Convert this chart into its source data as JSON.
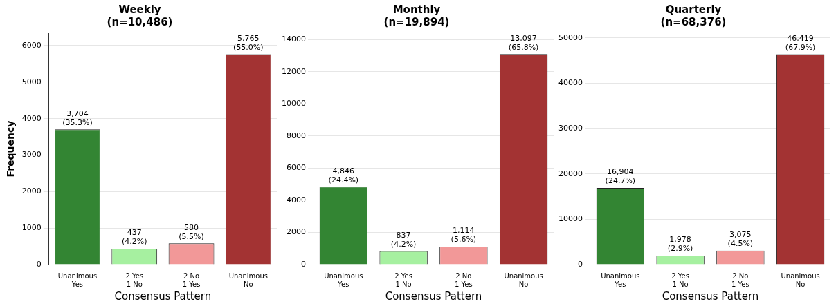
{
  "chart_data": [
    {
      "type": "bar",
      "title": "Weekly\n(n=10,486)",
      "xlabel": "Consensus Pattern",
      "ylabel": "Frequency",
      "categories": [
        "Unanimous\nYes",
        "2 Yes\n1 No",
        "2 No\n1 Yes",
        "Unanimous\nNo"
      ],
      "values": [
        3704,
        437,
        580,
        5765
      ],
      "colors": [
        "#338533",
        "#a6f0a0",
        "#f29898",
        "#a33333"
      ],
      "value_labels": [
        "3,704\n(35.3%)",
        "437\n(4.2%)",
        "580\n(5.5%)",
        "5,765\n(55.0%)"
      ],
      "ylim": [
        0,
        6340
      ],
      "yticks": [
        0,
        1000,
        2000,
        3000,
        4000,
        5000,
        6000
      ],
      "grid": "y"
    },
    {
      "type": "bar",
      "title": "Monthly\n(n=19,894)",
      "xlabel": "Consensus Pattern",
      "categories": [
        "Unanimous\nYes",
        "2 Yes\n1 No",
        "2 No\n1 Yes",
        "Unanimous\nNo"
      ],
      "values": [
        4846,
        837,
        1114,
        13097
      ],
      "colors": [
        "#338533",
        "#a6f0a0",
        "#f29898",
        "#a33333"
      ],
      "value_labels": [
        "4,846\n(24.4%)",
        "837\n(4.2%)",
        "1,114\n(5.6%)",
        "13,097\n(65.8%)"
      ],
      "ylim": [
        0,
        14400
      ],
      "yticks": [
        0,
        2000,
        4000,
        6000,
        8000,
        10000,
        12000,
        14000
      ],
      "grid": "y"
    },
    {
      "type": "bar",
      "title": "Quarterly\n(n=68,376)",
      "xlabel": "Consensus Pattern",
      "categories": [
        "Unanimous\nYes",
        "2 Yes\n1 No",
        "2 No\n1 Yes",
        "Unanimous\nNo"
      ],
      "values": [
        16904,
        1978,
        3075,
        46419
      ],
      "colors": [
        "#338533",
        "#a6f0a0",
        "#f29898",
        "#a33333"
      ],
      "value_labels": [
        "16,904\n(24.7%)",
        "1,978\n(2.9%)",
        "3,075\n(4.5%)",
        "46,419\n(67.9%)"
      ],
      "ylim": [
        0,
        51060
      ],
      "yticks": [
        0,
        10000,
        20000,
        30000,
        40000,
        50000
      ],
      "grid": "y"
    }
  ]
}
